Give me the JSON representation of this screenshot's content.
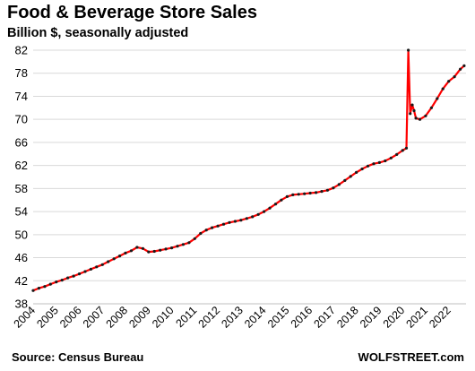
{
  "chart_data": {
    "type": "line",
    "title": "Food & Beverage Store Sales",
    "subtitle": "Billion $, seasonally adjusted",
    "source": "Source: Census Bureau",
    "brand": "WOLFSTREET.com",
    "ylim": [
      38,
      82
    ],
    "yticks": [
      38,
      42,
      46,
      50,
      54,
      58,
      62,
      66,
      70,
      74,
      78,
      82
    ],
    "xlim": [
      2004,
      2022.75
    ],
    "xticks": [
      2004,
      2005,
      2006,
      2007,
      2008,
      2009,
      2010,
      2011,
      2012,
      2013,
      2014,
      2015,
      2016,
      2017,
      2018,
      2019,
      2020,
      2021,
      2022
    ],
    "grid": "horizontal",
    "series": [
      {
        "color": "#ff0000",
        "marker_color": "#1a1a1a",
        "x": [
          2004.0,
          2004.25,
          2004.5,
          2004.75,
          2005.0,
          2005.25,
          2005.5,
          2005.75,
          2006.0,
          2006.25,
          2006.5,
          2006.75,
          2007.0,
          2007.25,
          2007.5,
          2007.75,
          2008.0,
          2008.25,
          2008.5,
          2008.75,
          2009.0,
          2009.25,
          2009.5,
          2009.75,
          2010.0,
          2010.25,
          2010.5,
          2010.75,
          2011.0,
          2011.25,
          2011.5,
          2011.75,
          2012.0,
          2012.25,
          2012.5,
          2012.75,
          2013.0,
          2013.25,
          2013.5,
          2013.75,
          2014.0,
          2014.25,
          2014.5,
          2014.75,
          2015.0,
          2015.25,
          2015.5,
          2015.75,
          2016.0,
          2016.25,
          2016.5,
          2016.75,
          2017.0,
          2017.25,
          2017.5,
          2017.75,
          2018.0,
          2018.25,
          2018.5,
          2018.75,
          2019.0,
          2019.25,
          2019.5,
          2019.75,
          2020.0,
          2020.17,
          2020.25,
          2020.33,
          2020.42,
          2020.5,
          2020.58,
          2020.75,
          2021.0,
          2021.25,
          2021.5,
          2021.75,
          2022.0,
          2022.25,
          2022.5,
          2022.67
        ],
        "y": [
          40.3,
          40.7,
          41.0,
          41.4,
          41.8,
          42.1,
          42.5,
          42.8,
          43.2,
          43.6,
          44.0,
          44.4,
          44.8,
          45.3,
          45.8,
          46.3,
          46.8,
          47.2,
          47.8,
          47.6,
          47.0,
          47.1,
          47.3,
          47.5,
          47.7,
          48.0,
          48.3,
          48.6,
          49.3,
          50.2,
          50.8,
          51.2,
          51.5,
          51.8,
          52.1,
          52.3,
          52.5,
          52.8,
          53.1,
          53.5,
          54.0,
          54.6,
          55.3,
          56.0,
          56.6,
          56.9,
          57.0,
          57.1,
          57.2,
          57.3,
          57.5,
          57.7,
          58.1,
          58.7,
          59.4,
          60.1,
          60.8,
          61.4,
          61.9,
          62.3,
          62.5,
          62.8,
          63.3,
          63.9,
          64.6,
          65.0,
          82.0,
          71.0,
          72.5,
          71.5,
          70.2,
          70.0,
          70.6,
          72.0,
          73.6,
          75.3,
          76.6,
          77.4,
          78.7,
          79.3
        ]
      }
    ]
  }
}
